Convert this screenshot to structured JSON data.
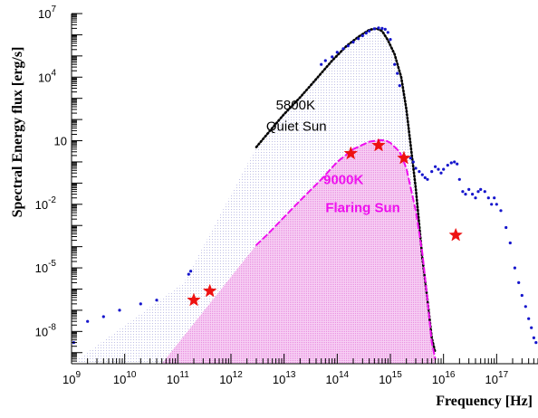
{
  "chart_data": {
    "type": "scatter",
    "title": "",
    "xlabel": "Frequency [Hz]",
    "ylabel": "Spectral Energy flux [erg/s]",
    "x_scale": "log",
    "y_scale": "log",
    "xlim": [
      1000000000.0,
      6e+17
    ],
    "ylim": [
      3e-10,
      10000000.0
    ],
    "grid": false,
    "legend": "none",
    "x_ticks": [
      {
        "value": 1000000000.0,
        "label": "10",
        "exp": "9"
      },
      {
        "value": 10000000000.0,
        "label": "10",
        "exp": "10"
      },
      {
        "value": 100000000000.0,
        "label": "10",
        "exp": "11"
      },
      {
        "value": 1000000000000.0,
        "label": "10",
        "exp": "12"
      },
      {
        "value": 10000000000000.0,
        "label": "10",
        "exp": "13"
      },
      {
        "value": 100000000000000.0,
        "label": "10",
        "exp": "14"
      },
      {
        "value": 1000000000000000.0,
        "label": "10",
        "exp": "15"
      },
      {
        "value": 1e+16,
        "label": "10",
        "exp": "16"
      },
      {
        "value": 1e+17,
        "label": "10",
        "exp": "17"
      }
    ],
    "y_ticks": [
      {
        "value": 10000000.0,
        "label": "10",
        "exp": "7"
      },
      {
        "value": 10000.0,
        "label": "10",
        "exp": "4"
      },
      {
        "value": 10,
        "label": "10",
        "exp": ""
      },
      {
        "value": 0.01,
        "label": "10",
        "exp": "-2"
      },
      {
        "value": 1e-05,
        "label": "10",
        "exp": "-5"
      },
      {
        "value": 1e-08,
        "label": "10",
        "exp": "-8"
      }
    ],
    "annotations": [
      {
        "text": "5800K",
        "color": "#000000",
        "x": 7000000000000.0,
        "y": 300
      },
      {
        "text": "Quiet Sun",
        "color": "#000000",
        "x": 4600000000000.0,
        "y": 30
      },
      {
        "text": "9000K",
        "color": "#ee11ee",
        "x": 55000000000000.0,
        "y": 0.09
      },
      {
        "text": "Flaring Sun",
        "color": "#ee11ee",
        "x": 60000000000000.0,
        "y": 0.0042
      }
    ],
    "series": [
      {
        "kind": "dotted-curve",
        "color": "#000000",
        "x": [
          3000000000000.0,
          6000000000000.0,
          10000000000000.0,
          20000000000000.0,
          40000000000000.0,
          80000000000000.0,
          150000000000000.0,
          250000000000000.0,
          400000000000000.0,
          550000000000000.0,
          700000000000000.0,
          900000000000000.0,
          1200000000000000.0,
          1600000000000000.0,
          2000000000000000.0,
          3000000000000000.0,
          4000000000000000.0,
          5000000000000000.0,
          6000000000000000.0,
          7000000000000000.0
        ],
        "y": [
          5,
          40,
          180,
          1100,
          8000,
          60000,
          300000,
          800000,
          1700000,
          2000000,
          1500000,
          550000,
          120000,
          10000,
          300,
          0.06,
          3e-05,
          3e-07,
          5e-09,
          1e-09
        ]
      },
      {
        "kind": "dashed-curve",
        "color": "#ee11ee",
        "x": [
          3000000000000.0,
          5000000000000.0,
          10000000000000.0,
          20000000000000.0,
          50000000000000.0,
          100000000000000.0,
          200000000000000.0,
          400000000000000.0,
          600000000000000.0,
          800000000000000.0,
          1000000000000000.0,
          1500000000000000.0,
          2000000000000000.0,
          3000000000000000.0,
          4000000000000000.0,
          5000000000000000.0,
          6000000000000000.0,
          7000000000000000.0
        ],
        "y": [
          0.00012,
          0.0004,
          0.0025,
          0.015,
          0.15,
          1.0,
          4.0,
          9.0,
          10.5,
          10.5,
          8.0,
          3.0,
          0.5,
          0.005,
          5e-05,
          3e-07,
          3e-09,
          5e-10
        ]
      },
      {
        "kind": "points",
        "color": "#1515cc",
        "x": [
          1100000000.0,
          2000000000.0,
          4000000000.0,
          8000000000.0,
          20000000000.0,
          40000000000.0,
          160000000000.0,
          175000000000.0
        ],
        "y": [
          3e-09,
          3e-08,
          5e-08,
          1e-07,
          2e-07,
          3e-07,
          5e-06,
          7e-06
        ]
      },
      {
        "kind": "points",
        "color": "#1515cc",
        "x": [
          50000000000000.0,
          60000000000000.0,
          80000000000000.0,
          100000000000000.0,
          130000000000000.0,
          160000000000000.0,
          200000000000000.0,
          250000000000000.0,
          300000000000000.0,
          350000000000000.0,
          400000000000000.0,
          500000000000000.0,
          600000000000000.0,
          700000000000000.0,
          800000000000000.0,
          900000000000000.0,
          1000000000000000.0,
          1200000000000000.0,
          1350000000000000.0,
          1500000000000000.0
        ],
        "y": [
          40000,
          60000,
          90000,
          150000,
          220000,
          300000,
          450000,
          650000,
          900000,
          1200000,
          1500000,
          1900000,
          2100000,
          2000000,
          1800000,
          1300000,
          600000,
          40000,
          15000,
          4000
        ]
      },
      {
        "kind": "points",
        "color": "#1515cc",
        "x": [
          2400000000000000.0,
          2700000000000000.0,
          3000000000000000.0,
          3500000000000000.0,
          4000000000000000.0,
          4500000000000000.0,
          5000000000000000.0,
          6000000000000000.0,
          7000000000000000.0,
          8000000000000000.0,
          9000000000000000.0,
          1e+16,
          1.2e+16,
          1.4e+16,
          1.6e+16,
          1.8e+16,
          2e+16,
          2.3e+16,
          2.6e+16,
          3e+16,
          3.5e+16,
          4e+16,
          4.5e+16,
          5e+16,
          6e+16,
          7e+16,
          8e+16,
          9e+16,
          1e+17,
          1.2e+17,
          1.5e+17,
          1.8e+17,
          2.2e+17,
          2.6e+17,
          3e+17,
          3.5e+17,
          4e+17,
          4.5e+17,
          5e+17,
          5.5e+17
        ],
        "y": [
          1.5,
          1.0,
          0.5,
          0.35,
          0.25,
          0.18,
          0.15,
          0.35,
          0.6,
          0.45,
          0.3,
          0.45,
          0.7,
          0.9,
          1.0,
          0.8,
          0.15,
          0.04,
          0.03,
          0.05,
          0.03,
          0.02,
          0.04,
          0.05,
          0.04,
          0.02,
          0.01,
          0.02,
          0.01,
          0.005,
          0.0008,
          0.00015,
          1e-05,
          2e-06,
          5e-07,
          1.5e-07,
          4e-08,
          1.5e-08,
          5e-09,
          3e-09
        ]
      },
      {
        "kind": "stars",
        "color": "#ee1111",
        "x": [
          200000000000.0,
          400000000000.0,
          180000000000000.0,
          600000000000000.0,
          1800000000000000.0,
          1.7e+16
        ],
        "y": [
          3e-07,
          8e-07,
          2.5,
          6,
          1.5,
          0.00035
        ]
      }
    ]
  }
}
